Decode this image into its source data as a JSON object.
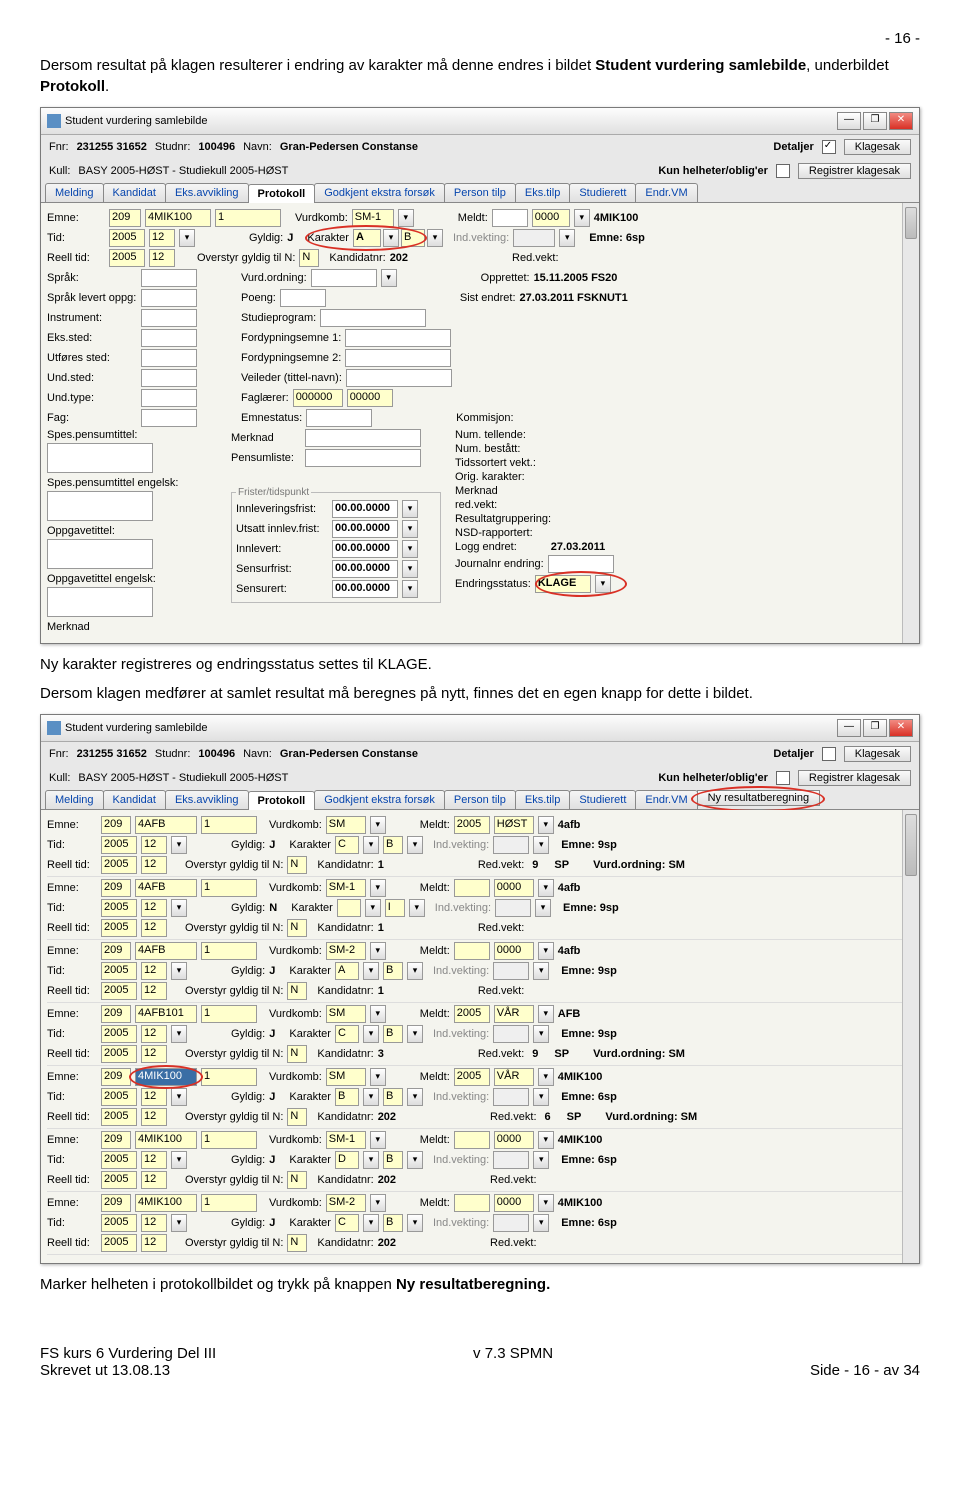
{
  "page_number_top": "- 16 -",
  "intro_paragraph_pre": "Dersom resultat på klagen resulterer i endring av karakter må denne endres i bildet ",
  "intro_paragraph_bold1": "Student vurdering samlebilde",
  "intro_paragraph_mid": ", underbildet ",
  "intro_paragraph_bold2": "Protokoll",
  "intro_paragraph_post": ".",
  "mid_paragraph": "Ny karakter registreres og endringsstatus settes til KLAGE.",
  "mid_paragraph2": "Dersom klagen medfører at samlet resultat må beregnes på nytt, finnes det en egen knapp for dette i bildet.",
  "bottom_paragraph_pre": "Marker helheten i protokollbildet og trykk på knappen ",
  "bottom_paragraph_bold": "Ny resultatberegning.",
  "footer_left_l1": "FS kurs 6 Vurdering Del III",
  "footer_left_l2": "Skrevet ut 13.08.13",
  "footer_mid": "v 7.3 SPMN",
  "footer_right": "Side - 16 - av 34",
  "win": {
    "title": "Student vurdering samlebilde",
    "fnr_lbl": "Fnr:",
    "fnr": "231255   31652",
    "studnr_lbl": "Studnr:",
    "studnr": "100496",
    "navn_lbl": "Navn:",
    "navn": "Gran-Pedersen          Constanse",
    "kull_lbl": "Kull:",
    "kull": "BASY 2005-HØST - Studiekull 2005-HØST",
    "detaljer": "Detaljer",
    "kun_helheter": "Kun helheter/oblig'er",
    "klagesak": "Klagesak",
    "registrer": "Registrer klagesak",
    "tabs": [
      "Melding",
      "Kandidat",
      "Eks.avvikling",
      "Protokoll",
      "Godkjent ekstra forsøk",
      "Person tilp",
      "Eks.tilp",
      "Studierett",
      "Endr.VM"
    ],
    "ny_res": "Ny resultatberegning"
  },
  "f1": {
    "emne_lbl": "Emne:",
    "emne_v1": "209",
    "emne_v2": "4MIK100",
    "emne_v3": "1",
    "vurdkomb_lbl": "Vurdkomb:",
    "vurdkomb": "SM-1",
    "meldt_lbl": "Meldt:",
    "meldt_v": "0000",
    "meldt_v2": "4MIK100",
    "tid_lbl": "Tid:",
    "tid_v1": "2005",
    "tid_v2": "12",
    "gyldig_lbl": "Gyldig:",
    "gyldig": "J",
    "karakter_lbl": "Karakter",
    "karakter_v": "A",
    "karakter_v2": "B",
    "indvekt_lbl": "Ind.vekting:",
    "emne6_lbl": "Emne: 6sp",
    "reell_lbl": "Reell tid:",
    "reell_v1": "2005",
    "reell_v2": "12",
    "overstyr_lbl": "Overstyr gyldig til N:",
    "overstyr": "N",
    "kand_lbl": "Kandidatnr:",
    "kand": "202",
    "redvekt_lbl": "Red.vekt:",
    "sprak_lbl": "Språk:",
    "vurdord_lbl": "Vurd.ordning:",
    "opprettet_lbl": "Opprettet:",
    "opprettet": "15.11.2005   FS20",
    "sist_lbl": "Sist endret:",
    "sist": "27.03.2011   FSKNUT1",
    "spraklev_lbl": "Språk levert oppg:",
    "poeng_lbl": "Poeng:",
    "instrument_lbl": "Instrument:",
    "studieprog_lbl": "Studieprogram:",
    "ekssted_lbl": "Eks.sted:",
    "ford1_lbl": "Fordypningsemne 1:",
    "utfsted_lbl": "Utføres sted:",
    "ford2_lbl": "Fordypningsemne 2:",
    "undsted_lbl": "Und.sted:",
    "veileder_lbl": "Veileder (tittel-navn):",
    "undtype_lbl": "Und.type:",
    "faglaerer_lbl": "Faglærer:",
    "faglaerer_v1": "000000",
    "faglaerer_v2": "00000",
    "fag_lbl": "Fag:",
    "emnestatus_lbl": "Emnestatus:",
    "kommisjon_lbl": "Kommisjon:",
    "spespens_lbl": "Spes.pensumtittel:",
    "merknad_lbl": "Merknad",
    "numtell_lbl": "Num. tellende:",
    "pensumliste_lbl": "Pensumliste:",
    "numbest_lbl": "Num. bestått:",
    "tidssort_lbl": "Tidssortert vekt.:",
    "spespens_en_lbl": "Spes.pensumtittel engelsk:",
    "origkar_lbl": "Orig. karakter:",
    "merknad2_lbl": "Merknad",
    "oppgtit_lbl": "Oppgavetittel:",
    "frister_legend": "Frister/tidspunkt",
    "innlev_lbl": "Innleveringsfrist:",
    "dt0": "00.00.0000",
    "redvekt2_lbl": "red.vekt:",
    "resgrp_lbl": "Resultatgruppering:",
    "utsatt_lbl": "Utsatt innlev.frist:",
    "nsd_lbl": "NSD-rapportert:",
    "oppgtit_en_lbl": "Oppgavetittel engelsk:",
    "innlevert_lbl": "Innlevert:",
    "logg_lbl": "Logg endret:",
    "logg_v": "27.03.2011",
    "merknad3_lbl": "Merknad",
    "sensurfrist_lbl": "Sensurfrist:",
    "journ_lbl": "Journalnr endring:",
    "sensurert_lbl": "Sensurert:",
    "endrstat_lbl": "Endringsstatus:",
    "endrstat_v": "KLAGE"
  },
  "f2": {
    "rows": [
      {
        "e1": "209",
        "e2": "4AFB",
        "e3": "1",
        "vk": "SM",
        "m1": "2005",
        "m2": "HØST",
        "m3": "4afb",
        "t1": "2005",
        "t2": "12",
        "g": "J",
        "k": "C",
        "kb": "B",
        "emne": "Emne: 9sp",
        "r1": "2005",
        "r2": "12",
        "on": "N",
        "kn": "1",
        "rv1": "9",
        "rv2": "SP",
        "vo": "Vurd.ordning: SM"
      },
      {
        "e1": "209",
        "e2": "4AFB",
        "e3": "1",
        "vk": "SM-1",
        "m1": "",
        "m2": "0000",
        "m3": "4afb",
        "t1": "2005",
        "t2": "12",
        "g": "N",
        "k": "",
        "kb": "I",
        "emne": "Emne: 9sp",
        "r1": "2005",
        "r2": "12",
        "on": "N",
        "kn": "1",
        "rv1": "",
        "rv2": "",
        "vo": ""
      },
      {
        "e1": "209",
        "e2": "4AFB",
        "e3": "1",
        "vk": "SM-2",
        "m1": "",
        "m2": "0000",
        "m3": "4afb",
        "t1": "2005",
        "t2": "12",
        "g": "J",
        "k": "A",
        "kb": "B",
        "emne": "Emne: 9sp",
        "r1": "2005",
        "r2": "12",
        "on": "N",
        "kn": "1",
        "rv1": "",
        "rv2": "",
        "vo": ""
      },
      {
        "e1": "209",
        "e2": "4AFB101",
        "e3": "1",
        "vk": "SM",
        "m1": "2005",
        "m2": "VÅR",
        "m3": "AFB",
        "t1": "2005",
        "t2": "12",
        "g": "J",
        "k": "C",
        "kb": "B",
        "emne": "Emne: 9sp",
        "r1": "2005",
        "r2": "12",
        "on": "N",
        "kn": "3",
        "rv1": "9",
        "rv2": "SP",
        "vo": "Vurd.ordning: SM"
      },
      {
        "e1": "209",
        "e2": "4MIK100",
        "e3": "1",
        "vk": "SM",
        "m1": "2005",
        "m2": "VÅR",
        "m3": "4MIK100",
        "hl": true,
        "t1": "2005",
        "t2": "12",
        "g": "J",
        "k": "B",
        "kb": "B",
        "emne": "Emne: 6sp",
        "r1": "2005",
        "r2": "12",
        "on": "N",
        "kn": "202",
        "rv1": "6",
        "rv2": "SP",
        "vo": "Vurd.ordning: SM"
      },
      {
        "e1": "209",
        "e2": "4MIK100",
        "e3": "1",
        "vk": "SM-1",
        "m1": "",
        "m2": "0000",
        "m3": "4MIK100",
        "t1": "2005",
        "t2": "12",
        "g": "J",
        "k": "D",
        "kb": "B",
        "emne": "Emne: 6sp",
        "r1": "2005",
        "r2": "12",
        "on": "N",
        "kn": "202",
        "rv1": "",
        "rv2": "",
        "vo": ""
      },
      {
        "e1": "209",
        "e2": "4MIK100",
        "e3": "1",
        "vk": "SM-2",
        "m1": "",
        "m2": "0000",
        "m3": "4MIK100",
        "t1": "2005",
        "t2": "12",
        "g": "J",
        "k": "C",
        "kb": "B",
        "emne": "Emne: 6sp",
        "r1": "2005",
        "r2": "12",
        "on": "N",
        "kn": "202",
        "rv1": "",
        "rv2": "",
        "vo": ""
      }
    ],
    "lbls": {
      "emne": "Emne:",
      "vk": "Vurdkomb:",
      "meldt": "Meldt:",
      "tid": "Tid:",
      "gyldig": "Gyldig:",
      "kar": "Karakter",
      "indv": "Ind.vekting:",
      "reell": "Reell tid:",
      "over": "Overstyr gyldig til N:",
      "kand": "Kandidatnr:",
      "redv": "Red.vekt:"
    }
  }
}
